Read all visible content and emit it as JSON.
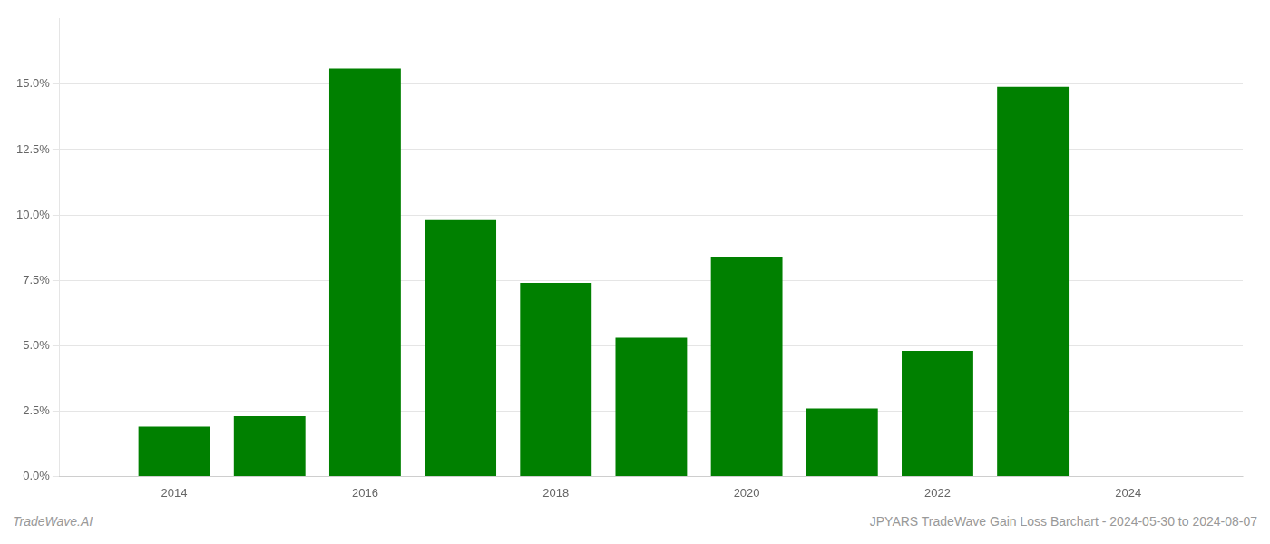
{
  "chart_data": {
    "type": "bar",
    "x": [
      2014,
      2015,
      2016,
      2017,
      2018,
      2019,
      2020,
      2021,
      2022,
      2023
    ],
    "values": [
      0.019,
      0.023,
      0.156,
      0.098,
      0.074,
      0.053,
      0.084,
      0.026,
      0.048,
      0.149
    ],
    "color": "#008000",
    "xlim": [
      2012.8,
      2025.2
    ],
    "xticks": [
      2014,
      2016,
      2018,
      2020,
      2022,
      2024
    ],
    "ylim": [
      0,
      0.175
    ],
    "yticks": [
      {
        "value": 0.0,
        "label": "0.0%"
      },
      {
        "value": 0.025,
        "label": "2.5%"
      },
      {
        "value": 0.05,
        "label": "5.0%"
      },
      {
        "value": 0.075,
        "label": "7.5%"
      },
      {
        "value": 0.1,
        "label": "10.0%"
      },
      {
        "value": 0.125,
        "label": "12.5%"
      },
      {
        "value": 0.15,
        "label": "15.0%"
      }
    ],
    "grid": "y",
    "annotations": [
      "TradeWave.AI",
      "JPYARS TradeWave Gain Loss Barchart - 2024-05-30 to 2024-08-07"
    ]
  }
}
